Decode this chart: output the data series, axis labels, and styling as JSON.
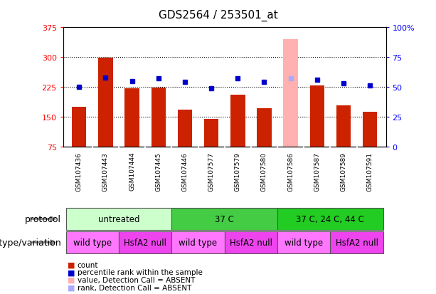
{
  "title": "GDS2564 / 253501_at",
  "samples": [
    "GSM107436",
    "GSM107443",
    "GSM107444",
    "GSM107445",
    "GSM107446",
    "GSM107577",
    "GSM107579",
    "GSM107580",
    "GSM107586",
    "GSM107587",
    "GSM107589",
    "GSM107591"
  ],
  "count_values": [
    175,
    298,
    222,
    224,
    168,
    145,
    205,
    172,
    345,
    228,
    178,
    163
  ],
  "percentile_values": [
    50,
    58,
    55,
    57,
    54,
    49,
    57,
    54,
    57,
    56,
    53,
    51
  ],
  "absent_indices": [
    8
  ],
  "ylim_left": [
    75,
    375
  ],
  "ylim_right": [
    0,
    100
  ],
  "yticks_left": [
    75,
    150,
    225,
    300,
    375
  ],
  "yticks_right": [
    0,
    25,
    50,
    75,
    100
  ],
  "bar_color_normal": "#cc2200",
  "bar_color_absent": "#ffb0b0",
  "dot_color_normal": "#0000cc",
  "dot_color_absent": "#aaaaff",
  "protocols": [
    {
      "label": "untreated",
      "span": [
        0,
        3
      ],
      "color": "#ccffcc"
    },
    {
      "label": "37 C",
      "span": [
        4,
        7
      ],
      "color": "#44cc44"
    },
    {
      "label": "37 C, 24 C, 44 C",
      "span": [
        8,
        11
      ],
      "color": "#22cc22"
    }
  ],
  "genotypes": [
    {
      "label": "wild type",
      "span": [
        0,
        1
      ],
      "color": "#ff77ff"
    },
    {
      "label": "HsfA2 null",
      "span": [
        2,
        3
      ],
      "color": "#ee44ee"
    },
    {
      "label": "wild type",
      "span": [
        4,
        5
      ],
      "color": "#ff77ff"
    },
    {
      "label": "HsfA2 null",
      "span": [
        6,
        7
      ],
      "color": "#ee44ee"
    },
    {
      "label": "wild type",
      "span": [
        8,
        9
      ],
      "color": "#ff77ff"
    },
    {
      "label": "HsfA2 null",
      "span": [
        10,
        11
      ],
      "color": "#ee44ee"
    }
  ],
  "protocol_label": "protocol",
  "genotype_label": "genotype/variation",
  "legend_items": [
    {
      "label": "count",
      "color": "#cc2200"
    },
    {
      "label": "percentile rank within the sample",
      "color": "#0000cc"
    },
    {
      "label": "value, Detection Call = ABSENT",
      "color": "#ffb0b0"
    },
    {
      "label": "rank, Detection Call = ABSENT",
      "color": "#aaaaff"
    }
  ],
  "arrow_color": "#888888",
  "sample_bg_color": "#cccccc",
  "sample_border_color": "#ffffff"
}
